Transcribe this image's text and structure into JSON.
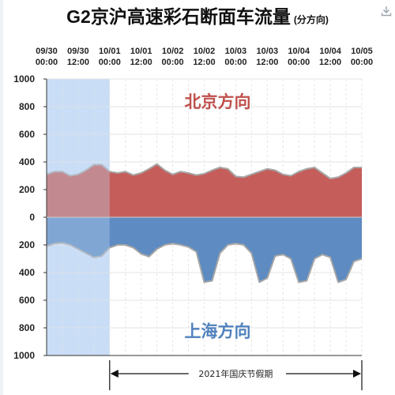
{
  "page": {
    "title": "G2京沪高速彩石断面车流量",
    "title_sub": "(分方向)",
    "icons": {
      "download": "download-icon"
    }
  },
  "chart_data": {
    "type": "area",
    "title": "G2京沪高速彩石断面车流量",
    "subtitle": "(分方向)",
    "x_tick_labels": [
      [
        "09/30",
        "00:00"
      ],
      [
        "09/30",
        "12:00"
      ],
      [
        "10/01",
        "00:00"
      ],
      [
        "10/01",
        "12:00"
      ],
      [
        "10/02",
        "00:00"
      ],
      [
        "10/02",
        "12:00"
      ],
      [
        "10/03",
        "00:00"
      ],
      [
        "10/03",
        "12:00"
      ],
      [
        "10/04",
        "00:00"
      ],
      [
        "10/04",
        "12:00"
      ],
      [
        "10/05",
        "00:00"
      ]
    ],
    "x_range_hours": [
      0,
      120
    ],
    "y_tick_labels": [
      "1000",
      "800",
      "600",
      "400",
      "200",
      "0",
      "200",
      "400",
      "600",
      "800",
      "1000"
    ],
    "ylim": [
      -1000,
      1000
    ],
    "grid": true,
    "shaded_period": {
      "from_hours": 0,
      "to_hours": 24
    },
    "holiday_span": {
      "label": "2021年国庆节假期",
      "from_hours": 24,
      "to_hours": 120
    },
    "colors": {
      "north": "#c0504d",
      "south": "#4f81bd",
      "shade": "#c9ddf6",
      "outline": "#a6a6a6",
      "north_label": "#c0504d",
      "south_label": "#4f81bd"
    },
    "series": [
      {
        "name": "北京方向",
        "x": [
          0,
          3,
          6,
          9,
          12,
          15,
          18,
          21,
          24,
          27,
          30,
          33,
          36,
          39,
          42,
          45,
          48,
          51,
          54,
          57,
          60,
          63,
          66,
          69,
          72,
          75,
          78,
          81,
          84,
          87,
          90,
          93,
          96,
          99,
          102,
          105,
          108,
          111,
          114,
          117,
          120
        ],
        "values": [
          310,
          330,
          330,
          300,
          310,
          340,
          380,
          380,
          330,
          320,
          330,
          305,
          320,
          350,
          385,
          340,
          310,
          330,
          320,
          305,
          315,
          340,
          360,
          350,
          295,
          290,
          310,
          330,
          350,
          340,
          310,
          300,
          330,
          350,
          360,
          320,
          280,
          290,
          320,
          360,
          360
        ]
      },
      {
        "name": "上海方向",
        "x": [
          0,
          3,
          6,
          9,
          12,
          15,
          18,
          21,
          24,
          27,
          30,
          33,
          36,
          39,
          42,
          45,
          48,
          51,
          54,
          57,
          60,
          63,
          66,
          69,
          72,
          75,
          78,
          81,
          84,
          87,
          90,
          93,
          96,
          99,
          102,
          105,
          108,
          111,
          114,
          117,
          120
        ],
        "values": [
          -210,
          -190,
          -185,
          -200,
          -230,
          -260,
          -290,
          -280,
          -220,
          -200,
          -200,
          -220,
          -265,
          -285,
          -230,
          -200,
          -190,
          -200,
          -215,
          -250,
          -470,
          -460,
          -260,
          -200,
          -190,
          -200,
          -260,
          -470,
          -440,
          -280,
          -270,
          -300,
          -470,
          -460,
          -300,
          -270,
          -290,
          -470,
          -450,
          -320,
          -300
        ]
      }
    ],
    "annotations": [
      {
        "text": "北京方向",
        "color_key": "north_label",
        "at_hours": 60,
        "at_value": 840
      },
      {
        "text": "上海方向",
        "color_key": "south_label",
        "at_hours": 60,
        "at_value": -820
      }
    ]
  }
}
